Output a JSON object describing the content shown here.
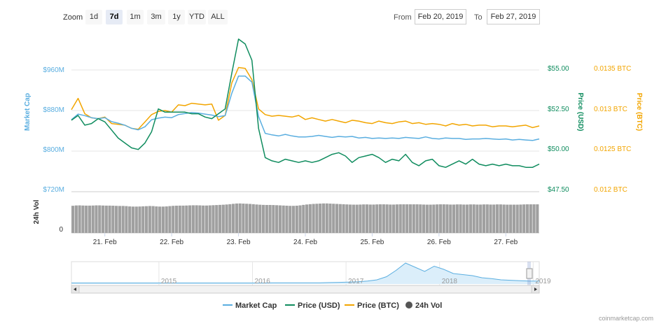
{
  "toolbar": {
    "zoom_label": "Zoom",
    "zoom_buttons": [
      "1d",
      "7d",
      "1m",
      "3m",
      "1y",
      "YTD",
      "ALL"
    ],
    "active_zoom": "7d",
    "from_label": "From",
    "from_value": "Feb 20, 2019",
    "to_label": "To",
    "to_value": "Feb 27, 2019"
  },
  "colors": {
    "market_cap": "#5aaee0",
    "price_usd": "#0f8c5e",
    "price_btc": "#f2a500",
    "volume": "#a0a0a0"
  },
  "chart_data": {
    "type": "line",
    "x_tick_labels": [
      "21. Feb",
      "22. Feb",
      "23. Feb",
      "24. Feb",
      "25. Feb",
      "26. Feb",
      "27. Feb"
    ],
    "axes": {
      "market_cap": {
        "title": "Market Cap",
        "ticks": [
          "$960M",
          "$880M",
          "$800M",
          "$720M"
        ],
        "range": [
          720,
          960
        ],
        "unit": "$M"
      },
      "price_usd": {
        "title": "Price (USD)",
        "ticks": [
          "$55.00",
          "$52.50",
          "$50.00",
          "$47.50"
        ],
        "range": [
          47.5,
          55
        ]
      },
      "price_btc": {
        "title": "Price (BTC)",
        "ticks": [
          "0.0135 BTC",
          "0.013 BTC",
          "0.0125 BTC",
          "0.012 BTC"
        ],
        "range": [
          0.012,
          0.0135
        ]
      },
      "volume": {
        "title": "24h Vol",
        "ticks": [
          "0"
        ]
      }
    },
    "series": [
      {
        "name": "Market Cap",
        "axis": "market_cap",
        "x": [
          0.0,
          0.1,
          0.2,
          0.3,
          0.4,
          0.5,
          0.6,
          0.7,
          0.8,
          0.9,
          1.0,
          1.1,
          1.2,
          1.3,
          1.4,
          1.5,
          1.6,
          1.7,
          1.8,
          1.9,
          2.0,
          2.1,
          2.2,
          2.3,
          2.4,
          2.5,
          2.6,
          2.7,
          2.8,
          2.9,
          3.0,
          3.1,
          3.2,
          3.3,
          3.4,
          3.5,
          3.6,
          3.7,
          3.8,
          3.9,
          4.0,
          4.1,
          4.2,
          4.3,
          4.4,
          4.5,
          4.6,
          4.7,
          4.8,
          4.9,
          5.0,
          5.1,
          5.2,
          5.3,
          5.4,
          5.5,
          5.6,
          5.7,
          5.8,
          5.9,
          6.0,
          6.1,
          6.2,
          6.3,
          6.4,
          6.5,
          6.6,
          6.7,
          6.8,
          6.9,
          7.0
        ],
        "values": [
          862,
          873,
          870,
          866,
          864,
          866,
          858,
          855,
          851,
          845,
          842,
          848,
          862,
          865,
          867,
          866,
          872,
          874,
          876,
          875,
          873,
          871,
          868,
          870,
          914,
          948,
          948,
          936,
          868,
          835,
          832,
          830,
          833,
          830,
          828,
          828,
          829,
          831,
          829,
          827,
          829,
          828,
          829,
          826,
          827,
          825,
          826,
          825,
          826,
          825,
          827,
          826,
          825,
          828,
          825,
          824,
          826,
          825,
          825,
          823,
          824,
          824,
          825,
          824,
          823,
          824,
          822,
          823,
          822,
          821,
          824
        ]
      },
      {
        "name": "Price (USD)",
        "axis": "price_usd",
        "x": [
          0.0,
          0.1,
          0.2,
          0.3,
          0.4,
          0.5,
          0.6,
          0.7,
          0.8,
          0.9,
          1.0,
          1.1,
          1.2,
          1.3,
          1.4,
          1.5,
          1.6,
          1.7,
          1.8,
          1.9,
          2.0,
          2.1,
          2.2,
          2.3,
          2.4,
          2.5,
          2.6,
          2.7,
          2.8,
          2.9,
          3.0,
          3.1,
          3.2,
          3.3,
          3.4,
          3.5,
          3.6,
          3.7,
          3.8,
          3.9,
          4.0,
          4.1,
          4.2,
          4.3,
          4.4,
          4.5,
          4.6,
          4.7,
          4.8,
          4.9,
          5.0,
          5.1,
          5.2,
          5.3,
          5.4,
          5.5,
          5.6,
          5.7,
          5.8,
          5.9,
          6.0,
          6.1,
          6.2,
          6.3,
          6.4,
          6.5,
          6.6,
          6.7,
          6.8,
          6.9,
          7.0
        ],
        "values": [
          51.9,
          52.2,
          51.6,
          51.7,
          52.0,
          51.8,
          51.3,
          50.8,
          50.5,
          50.2,
          50.1,
          50.5,
          51.2,
          52.6,
          52.4,
          52.4,
          52.4,
          52.4,
          52.3,
          52.3,
          52.1,
          52.0,
          52.3,
          52.6,
          54.8,
          56.9,
          56.6,
          55.6,
          51.4,
          49.6,
          49.4,
          49.3,
          49.5,
          49.4,
          49.3,
          49.4,
          49.3,
          49.4,
          49.6,
          49.8,
          49.9,
          49.7,
          49.3,
          49.6,
          49.7,
          49.8,
          49.6,
          49.3,
          49.5,
          49.4,
          49.8,
          49.3,
          49.1,
          49.4,
          49.5,
          49.1,
          49.0,
          49.2,
          49.4,
          49.2,
          49.5,
          49.2,
          49.1,
          49.2,
          49.1,
          49.2,
          49.1,
          49.1,
          49.0,
          49.0,
          49.2
        ]
      },
      {
        "name": "Price (BTC)",
        "axis": "price_btc",
        "x": [
          0.0,
          0.1,
          0.2,
          0.3,
          0.4,
          0.5,
          0.6,
          0.7,
          0.8,
          0.9,
          1.0,
          1.1,
          1.2,
          1.3,
          1.4,
          1.5,
          1.6,
          1.7,
          1.8,
          1.9,
          2.0,
          2.1,
          2.2,
          2.3,
          2.4,
          2.5,
          2.6,
          2.7,
          2.8,
          2.9,
          3.0,
          3.1,
          3.2,
          3.3,
          3.4,
          3.5,
          3.6,
          3.7,
          3.8,
          3.9,
          4.0,
          4.1,
          4.2,
          4.3,
          4.4,
          4.5,
          4.6,
          4.7,
          4.8,
          4.9,
          5.0,
          5.1,
          5.2,
          5.3,
          5.4,
          5.5,
          5.6,
          5.7,
          5.8,
          5.9,
          6.0,
          6.1,
          6.2,
          6.3,
          6.4,
          6.5,
          6.6,
          6.7,
          6.8,
          6.9,
          7.0
        ],
        "values": [
          0.01301,
          0.01315,
          0.01296,
          0.01291,
          0.0129,
          0.01292,
          0.01284,
          0.01283,
          0.01282,
          0.01278,
          0.01277,
          0.01286,
          0.01295,
          0.01299,
          0.013,
          0.01298,
          0.01307,
          0.01306,
          0.01309,
          0.01308,
          0.01307,
          0.01308,
          0.01288,
          0.01294,
          0.01334,
          0.01353,
          0.01352,
          0.01338,
          0.01302,
          0.01295,
          0.01293,
          0.01294,
          0.01293,
          0.01292,
          0.01294,
          0.01289,
          0.01291,
          0.01289,
          0.01287,
          0.01289,
          0.01287,
          0.01285,
          0.01288,
          0.01287,
          0.01285,
          0.01284,
          0.01287,
          0.01285,
          0.01284,
          0.01286,
          0.01287,
          0.01284,
          0.01285,
          0.01283,
          0.01284,
          0.01283,
          0.01281,
          0.01284,
          0.01282,
          0.01283,
          0.01281,
          0.01282,
          0.01282,
          0.0128,
          0.01281,
          0.01281,
          0.0128,
          0.01281,
          0.01282,
          0.01279,
          0.01281
        ]
      },
      {
        "name": "24h Vol",
        "axis": "volume",
        "x": [
          0.0,
          0.1,
          0.2,
          0.3,
          0.4,
          0.5,
          0.6,
          0.7,
          0.8,
          0.9,
          1.0,
          1.1,
          1.2,
          1.3,
          1.4,
          1.5,
          1.6,
          1.7,
          1.8,
          1.9,
          2.0,
          2.1,
          2.2,
          2.3,
          2.4,
          2.5,
          2.6,
          2.7,
          2.8,
          2.9,
          3.0,
          3.1,
          3.2,
          3.3,
          3.4,
          3.5,
          3.6,
          3.7,
          3.8,
          3.9,
          4.0,
          4.1,
          4.2,
          4.3,
          4.4,
          4.5,
          4.6,
          4.7,
          4.8,
          4.9,
          5.0,
          5.1,
          5.2,
          5.3,
          5.4,
          5.5,
          5.6,
          5.7,
          5.8,
          5.9,
          6.0,
          6.1,
          6.2,
          6.3,
          6.4,
          6.5,
          6.6,
          6.7,
          6.8,
          6.9,
          7.0
        ],
        "values": [
          0.84,
          0.86,
          0.85,
          0.85,
          0.86,
          0.85,
          0.85,
          0.84,
          0.84,
          0.82,
          0.82,
          0.83,
          0.84,
          0.82,
          0.82,
          0.84,
          0.85,
          0.85,
          0.86,
          0.86,
          0.85,
          0.86,
          0.87,
          0.88,
          0.9,
          0.92,
          0.91,
          0.9,
          0.88,
          0.87,
          0.87,
          0.86,
          0.85,
          0.84,
          0.85,
          0.88,
          0.9,
          0.91,
          0.92,
          0.91,
          0.9,
          0.89,
          0.88,
          0.88,
          0.89,
          0.88,
          0.89,
          0.89,
          0.88,
          0.89,
          0.89,
          0.89,
          0.89,
          0.88,
          0.88,
          0.89,
          0.89,
          0.88,
          0.89,
          0.88,
          0.89,
          0.88,
          0.89,
          0.88,
          0.89,
          0.88,
          0.88,
          0.88,
          0.89,
          0.89,
          0.89
        ]
      }
    ],
    "navigator": {
      "year_labels": [
        "2015",
        "2016",
        "2017",
        "2018",
        "2019"
      ],
      "values": [
        0.05,
        0.05,
        0.05,
        0.05,
        0.05,
        0.05,
        0.05,
        0.05,
        0.05,
        0.05,
        0.05,
        0.05,
        0.05,
        0.05,
        0.05,
        0.05,
        0.05,
        0.05,
        0.05,
        0.05,
        0.05,
        0.06,
        0.06,
        0.06,
        0.06,
        0.06,
        0.06,
        0.07,
        0.08,
        0.09,
        0.11,
        0.14,
        0.2,
        0.35,
        0.65,
        1.0,
        0.8,
        0.6,
        0.85,
        0.7,
        0.5,
        0.45,
        0.4,
        0.3,
        0.26,
        0.2,
        0.18,
        0.16,
        0.14,
        0.14
      ]
    },
    "legend": [
      "Market Cap",
      "Price (USD)",
      "Price (BTC)",
      "24h Vol"
    ],
    "credits": "coinmarketcap.com"
  }
}
